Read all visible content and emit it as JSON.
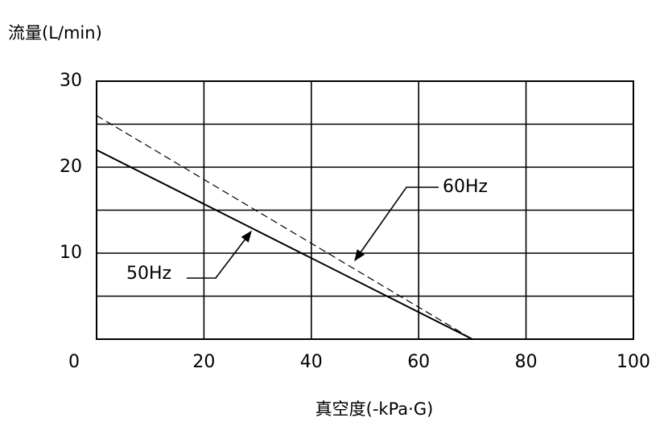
{
  "chart_data": {
    "type": "line",
    "y_label": "流量(L/min)",
    "x_label": "真空度(-kPa·G)",
    "x": [
      0,
      70
    ],
    "series": [
      {
        "name": "50Hz",
        "color": "#000000",
        "dash": "solid",
        "values": [
          22,
          0
        ]
      },
      {
        "name": "60Hz",
        "color": "#000000",
        "dash": "dashed",
        "values": [
          26,
          0
        ]
      }
    ],
    "xlim": [
      0,
      100
    ],
    "ylim": [
      0,
      30
    ],
    "xticks": [
      0,
      20,
      40,
      60,
      80,
      100
    ],
    "yticks": [
      10,
      20,
      30
    ],
    "minor_yticks": [
      5,
      15,
      25
    ],
    "grid": true
  }
}
